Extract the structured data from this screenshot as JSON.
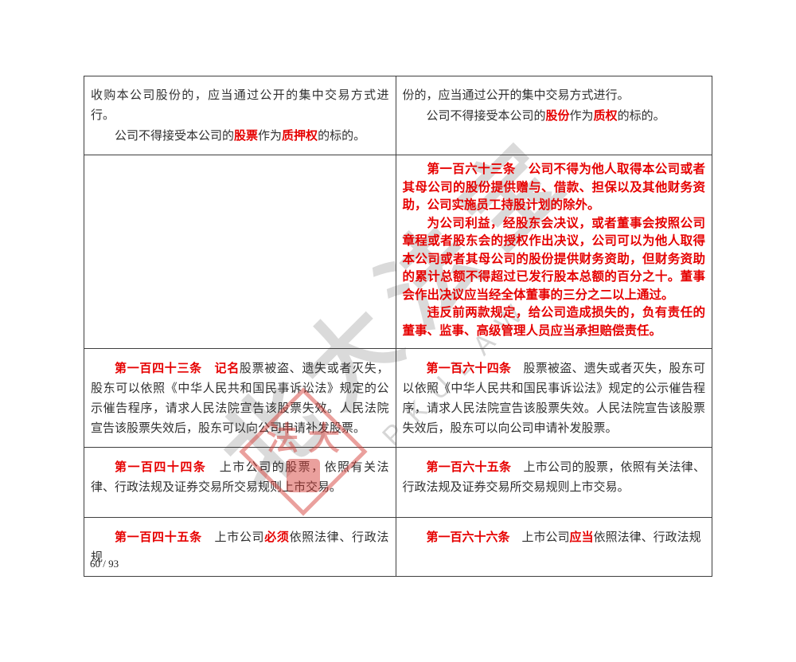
{
  "page": {
    "footer": "60 / 93"
  },
  "watermark": {
    "cjk_text": "北大法宝",
    "latin_text": "PKULAW",
    "seal_char_1": "法",
    "seal_char_2": "大",
    "seal_color": "#d43b35",
    "gray_color": "#9b9b9b"
  },
  "colors": {
    "emphasis_red": "#e60000",
    "body_text": "#303030",
    "border": "#3f3f3f"
  },
  "table": {
    "rows": [
      {
        "left": {
          "style": "normal",
          "paragraphs": [
            {
              "indent": false,
              "runs": [
                {
                  "t": "收购本公司股份的，应当通过公开的集中交易方式进行。",
                  "red": false
                }
              ]
            },
            {
              "indent": true,
              "runs": [
                {
                  "t": "公司不得接受本公司的",
                  "red": false
                },
                {
                  "t": "股票",
                  "red": true
                },
                {
                  "t": "作为",
                  "red": false
                },
                {
                  "t": "质押权",
                  "red": true
                },
                {
                  "t": "的标的。",
                  "red": false
                }
              ]
            }
          ]
        },
        "right": {
          "style": "normal",
          "paragraphs": [
            {
              "indent": false,
              "runs": [
                {
                  "t": "份的，应当通过公开的集中交易方式进行。",
                  "red": false
                }
              ]
            },
            {
              "indent": true,
              "runs": [
                {
                  "t": "公司不得接受本公司的",
                  "red": false
                },
                {
                  "t": "股份",
                  "red": true
                },
                {
                  "t": "作为",
                  "red": false
                },
                {
                  "t": "质权",
                  "red": true
                },
                {
                  "t": "的标的。",
                  "red": false
                }
              ]
            }
          ]
        }
      },
      {
        "left": {
          "style": "normal",
          "paragraphs": []
        },
        "right": {
          "style": "red-block",
          "paragraphs": [
            {
              "indent": true,
              "runs": [
                {
                  "t": "第一百六十三条　公司不得为他人取得本公司或者其母公司的股份提供赠与、借款、担保以及其他财务资助，公司实施员工持股计划的除外。",
                  "red": true
                }
              ]
            },
            {
              "indent": true,
              "runs": [
                {
                  "t": "为公司利益，经股东会决议，或者董事会按照公司章程或者股东会的授权作出决议，公司可以为他人取得本公司或者其母公司的股份提供财务资助，但财务资助的累计总额不得超过已发行股本总额的百分之十。董事会作出决议应当经全体董事的三分之二以上通过。",
                  "red": true
                }
              ]
            },
            {
              "indent": true,
              "runs": [
                {
                  "t": "违反前两款规定，给公司造成损失的，负有责任的董事、监事、高级管理人员应当承担赔偿责任。",
                  "red": true
                }
              ]
            }
          ]
        }
      },
      {
        "left": {
          "style": "normal",
          "paragraphs": [
            {
              "indent": true,
              "runs": [
                {
                  "t": "第一百四十三条",
                  "red": true
                },
                {
                  "t": "　",
                  "red": false
                },
                {
                  "t": "记名",
                  "red": true
                },
                {
                  "t": "股票被盗、遗失或者灭失，股东可以依照《中华人民共和国民事诉讼法》规定的公示催告程序，请求人民法院宣告该股票失效。人民法院宣告该股票失效后，股东可以向公司申请补发股票。",
                  "red": false
                }
              ]
            }
          ]
        },
        "right": {
          "style": "normal",
          "paragraphs": [
            {
              "indent": true,
              "runs": [
                {
                  "t": "第一百六十四条",
                  "red": true
                },
                {
                  "t": "　",
                  "red": false
                },
                {
                  "t": "股票被盗、遗失或者灭失，股东可以依照《中华人民共和国民事诉讼法》规定的公示催告程序，请求人民法院宣告该股票失效。人民法院宣告该股票失效后，股东可以向公司申请补发股票。",
                  "red": false
                }
              ]
            }
          ]
        }
      },
      {
        "left": {
          "style": "normal",
          "paragraphs": [
            {
              "indent": true,
              "runs": [
                {
                  "t": "第一百四十四条",
                  "red": true
                },
                {
                  "t": "　",
                  "red": false
                },
                {
                  "t": "上市公司的股票，依照有关法律、行政法规及证券交易所交易规则上市交易。",
                  "red": false
                }
              ]
            }
          ]
        },
        "right": {
          "style": "normal",
          "paragraphs": [
            {
              "indent": true,
              "runs": [
                {
                  "t": "第一百六十五条",
                  "red": true
                },
                {
                  "t": "　",
                  "red": false
                },
                {
                  "t": "上市公司的股票，依照有关法律、行政法规及证券交易所交易规则上市交易。",
                  "red": false
                }
              ]
            }
          ]
        }
      },
      {
        "left": {
          "style": "normal",
          "paragraphs": [
            {
              "indent": true,
              "runs": [
                {
                  "t": "第一百四十五条",
                  "red": true
                },
                {
                  "t": "　",
                  "red": false
                },
                {
                  "t": "上市公司",
                  "red": false
                },
                {
                  "t": "必须",
                  "red": true
                },
                {
                  "t": "依照法律、行政法规",
                  "red": false
                }
              ]
            }
          ]
        },
        "right": {
          "style": "normal",
          "paragraphs": [
            {
              "indent": true,
              "runs": [
                {
                  "t": "第一百六十六条",
                  "red": true
                },
                {
                  "t": "　",
                  "red": false
                },
                {
                  "t": "上市公司",
                  "red": false
                },
                {
                  "t": "应当",
                  "red": true
                },
                {
                  "t": "依照法律、行政法规",
                  "red": false
                }
              ]
            }
          ]
        }
      }
    ]
  }
}
